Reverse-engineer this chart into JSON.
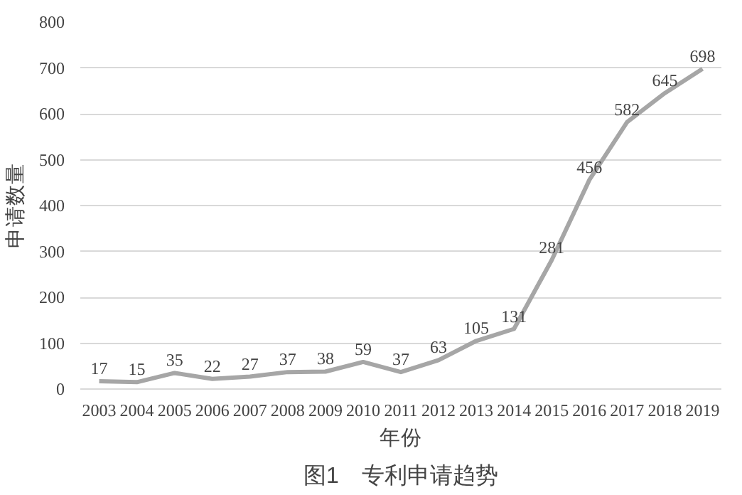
{
  "chart_data": {
    "type": "line",
    "title": "图1　专利申请趋势",
    "xlabel": "年份",
    "ylabel": "申请数量",
    "categories": [
      "2003",
      "2004",
      "2005",
      "2006",
      "2007",
      "2008",
      "2009",
      "2010",
      "2011",
      "2012",
      "2013",
      "2014",
      "2015",
      "2016",
      "2017",
      "2018",
      "2019"
    ],
    "series": [
      {
        "color": "#a6a6a6",
        "values": [
          17,
          15,
          35,
          22,
          27,
          37,
          38,
          59,
          37,
          63,
          105,
          131,
          281,
          456,
          582,
          645,
          698
        ]
      }
    ],
    "ylim": [
      0,
      800
    ],
    "yticks": [
      0,
      100,
      200,
      300,
      400,
      500,
      600,
      700,
      800
    ],
    "grid": "y",
    "data_labels": true
  }
}
